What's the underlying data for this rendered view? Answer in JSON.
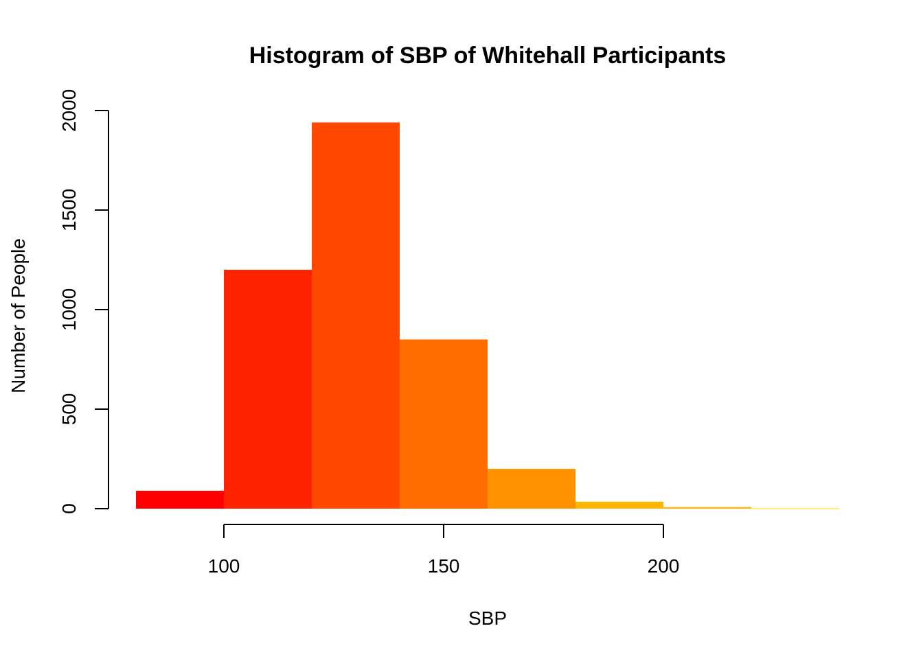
{
  "chart_data": {
    "type": "bar",
    "title": "Histogram of SBP of Whitehall Participants",
    "xlabel": "SBP",
    "ylabel": "Number of People",
    "bins": [
      {
        "from": 80,
        "to": 100,
        "count": 90,
        "color": "#FF0000"
      },
      {
        "from": 100,
        "to": 120,
        "count": 1200,
        "color": "#FF2400"
      },
      {
        "from": 120,
        "to": 140,
        "count": 1940,
        "color": "#FF4900"
      },
      {
        "from": 140,
        "to": 160,
        "count": 850,
        "color": "#FF6D00"
      },
      {
        "from": 160,
        "to": 180,
        "count": 200,
        "color": "#FF9200"
      },
      {
        "from": 180,
        "to": 200,
        "count": 35,
        "color": "#FFB600"
      },
      {
        "from": 200,
        "to": 220,
        "count": 8,
        "color": "#FFB600"
      },
      {
        "from": 220,
        "to": 240,
        "count": 2,
        "color": "#FFDB00"
      }
    ],
    "xlim": [
      80,
      240
    ],
    "ylim": [
      0,
      2000
    ],
    "x_ticks": [
      100,
      150,
      200
    ],
    "y_ticks": [
      0,
      500,
      1000,
      1500,
      2000
    ],
    "grid": false
  }
}
